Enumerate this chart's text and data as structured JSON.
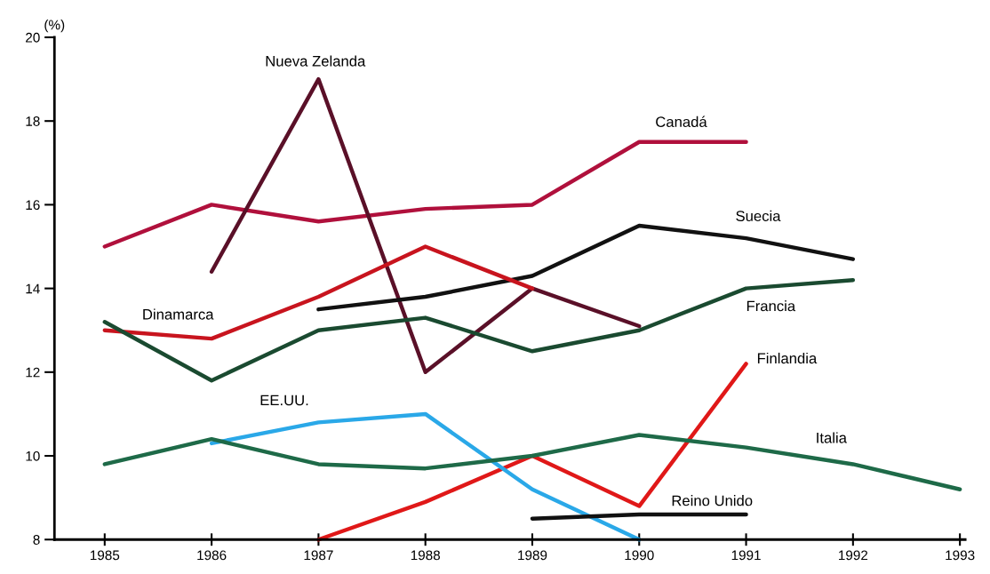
{
  "chart_data": {
    "type": "line",
    "ylabel": "(%)",
    "x": [
      1985,
      1986,
      1987,
      1988,
      1989,
      1990,
      1991,
      1992,
      1993
    ],
    "xlim": [
      1984.53,
      1993.05
    ],
    "xticks": [
      1985,
      1986,
      1987,
      1988,
      1989,
      1990,
      1991,
      1992,
      1993
    ],
    "ylim": [
      8,
      20
    ],
    "yticks": [
      8,
      10,
      12,
      14,
      16,
      18,
      20
    ],
    "grid": false,
    "legend": false,
    "marker": "none",
    "line_style": "solid",
    "series": [
      {
        "name": "Canadá",
        "color": "#b0103c",
        "values": [
          15.0,
          16.0,
          15.6,
          15.9,
          16.0,
          17.5,
          17.5,
          null,
          null
        ]
      },
      {
        "name": "Nueva Zelanda",
        "color": "#5a1028",
        "values": [
          null,
          14.4,
          19.0,
          12.0,
          14.0,
          13.1,
          null,
          null,
          null
        ]
      },
      {
        "name": "Suecia",
        "color": "#111111",
        "values": [
          null,
          null,
          13.5,
          13.8,
          14.3,
          15.5,
          15.2,
          14.7,
          null
        ]
      },
      {
        "name": "Dinamarca",
        "color": "#c8141e",
        "values": [
          13.0,
          12.8,
          13.8,
          15.0,
          14.0,
          null,
          null,
          null,
          null
        ]
      },
      {
        "name": "Francia",
        "color": "#1a4a30",
        "values": [
          13.2,
          11.8,
          13.0,
          13.3,
          12.5,
          13.0,
          14.0,
          14.2,
          null
        ]
      },
      {
        "name": "Finlandia",
        "color": "#e01818",
        "values": [
          null,
          null,
          8.0,
          8.9,
          10.0,
          8.8,
          12.2,
          null,
          null
        ]
      },
      {
        "name": "EE.UU.",
        "color": "#2aa8e8",
        "values": [
          null,
          10.3,
          10.8,
          11.0,
          9.2,
          8.0,
          null,
          null,
          null
        ]
      },
      {
        "name": "Italia",
        "color": "#1e6a48",
        "values": [
          9.8,
          10.4,
          9.8,
          9.7,
          10.0,
          10.5,
          10.2,
          9.8,
          9.2
        ]
      },
      {
        "name": "Reino Unido",
        "color": "#111111",
        "values": [
          null,
          null,
          null,
          null,
          8.5,
          8.6,
          8.6,
          null,
          null
        ]
      }
    ]
  }
}
